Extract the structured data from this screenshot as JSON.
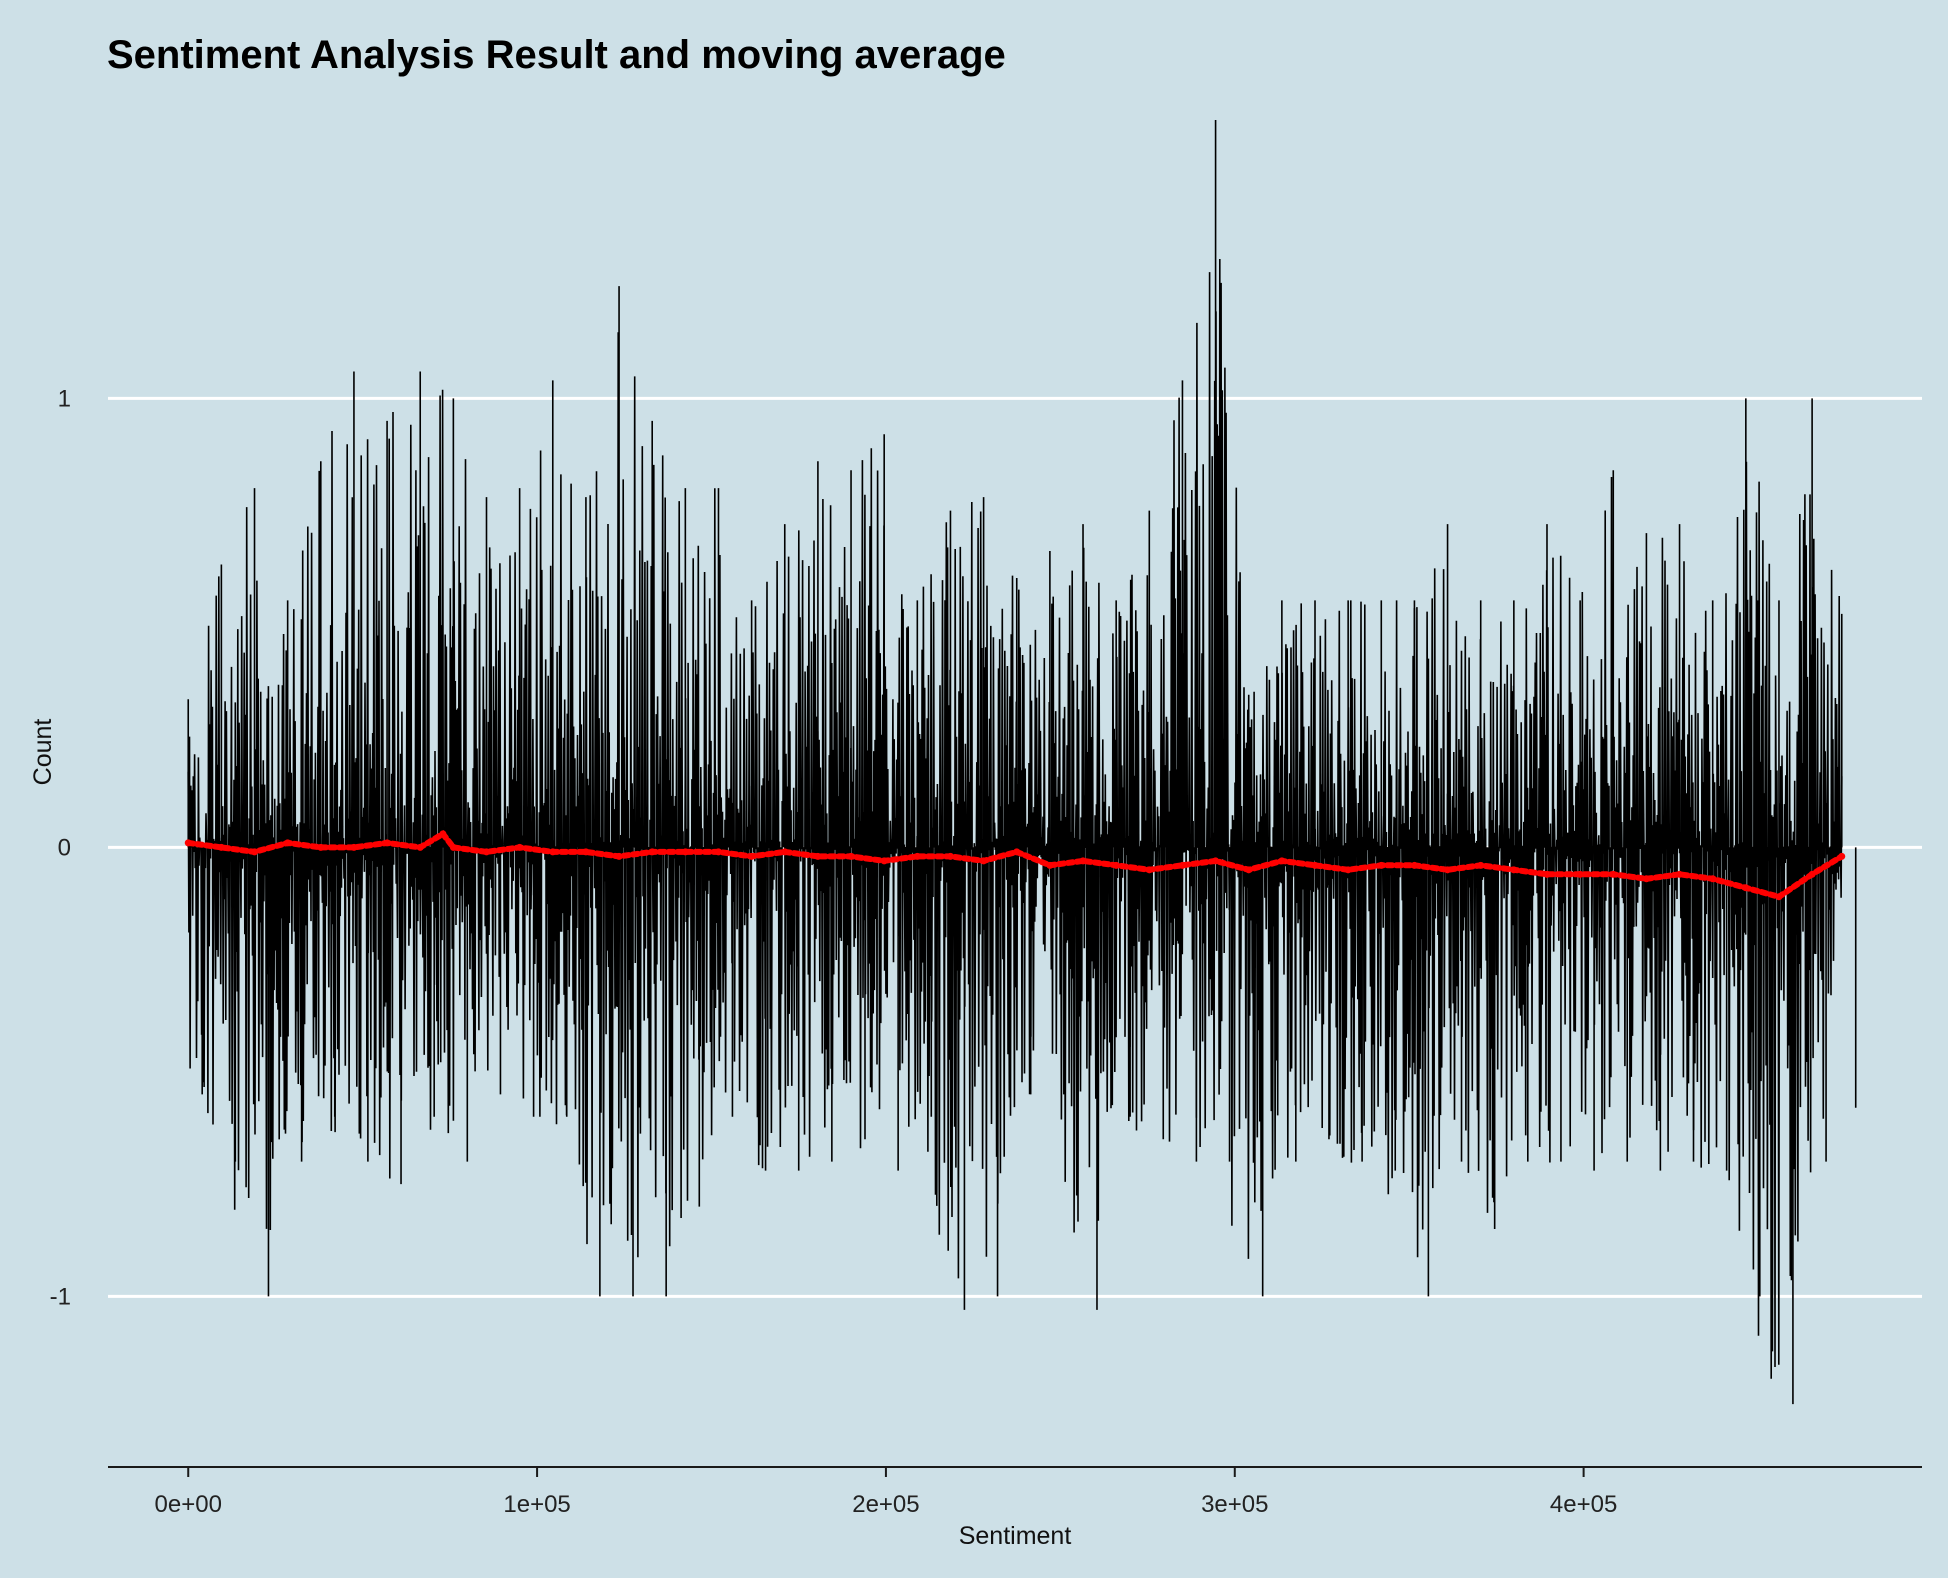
{
  "chart_data": {
    "type": "line",
    "title": "Sentiment Analysis Result and moving average",
    "xlabel": "Sentiment",
    "ylabel": "Count",
    "xlim": [
      -23000,
      497000
    ],
    "ylim": [
      -1.38,
      1.62
    ],
    "x_ticks": [
      {
        "value": 0,
        "label": "0e+00"
      },
      {
        "value": 100000,
        "label": "1e+05"
      },
      {
        "value": 200000,
        "label": "2e+05"
      },
      {
        "value": 300000,
        "label": "3e+05"
      },
      {
        "value": 400000,
        "label": "4e+05"
      }
    ],
    "y_ticks": [
      {
        "value": 1,
        "label": "1"
      },
      {
        "value": 0,
        "label": "0"
      },
      {
        "value": -1,
        "label": "-1"
      }
    ],
    "grid": "horizontal",
    "colors": {
      "background": "#cde0e7",
      "grid": "#ffffff",
      "raw": "#000000",
      "moving_average": "#ff0000"
    },
    "series": [
      {
        "style": "line",
        "color": "#000000",
        "x": [
          0,
          9500,
          19000,
          28500,
          38000,
          47500,
          57000,
          66500,
          76000,
          85500,
          95000,
          104500,
          114000,
          123500,
          133000,
          142500,
          152000,
          161500,
          171000,
          180500,
          190000,
          199500,
          209000,
          218500,
          228000,
          237500,
          247000,
          256500,
          266000,
          275500,
          285000,
          294500,
          304000,
          313500,
          323000,
          332500,
          342000,
          351500,
          361000,
          370500,
          380000,
          389500,
          399000,
          408500,
          418000,
          427500,
          437000,
          446500,
          456000,
          465500,
          474000
        ],
        "max": [
          0.33,
          0.63,
          0.8,
          0.55,
          0.86,
          1.06,
          0.95,
          1.06,
          1.0,
          0.78,
          0.8,
          1.04,
          0.78,
          1.25,
          0.95,
          0.8,
          0.8,
          0.55,
          0.72,
          0.86,
          0.84,
          0.92,
          0.55,
          0.75,
          0.78,
          0.6,
          0.66,
          0.72,
          0.55,
          0.75,
          1.04,
          1.62,
          0.34,
          0.55,
          0.55,
          0.55,
          0.55,
          0.55,
          0.72,
          0.55,
          0.55,
          0.72,
          0.55,
          0.84,
          0.7,
          0.72,
          0.55,
          1.0,
          0.55,
          1.0,
          0.52
        ],
        "min": [
          -0.55,
          -0.7,
          -1.0,
          -0.7,
          -0.6,
          -0.7,
          -0.75,
          -0.6,
          -0.7,
          -0.55,
          -0.6,
          -0.6,
          -1.0,
          -1.0,
          -1.0,
          -0.8,
          -0.6,
          -0.72,
          -0.72,
          -0.7,
          -0.65,
          -0.72,
          -0.6,
          -1.03,
          -1.0,
          -0.55,
          -0.55,
          -1.03,
          -0.6,
          -0.65,
          -0.7,
          -0.7,
          -1.0,
          -0.7,
          -0.65,
          -0.7,
          -0.72,
          -1.0,
          -0.7,
          -0.85,
          -0.7,
          -0.7,
          -0.72,
          -0.7,
          -0.72,
          -0.7,
          -0.72,
          -1.0,
          -1.24,
          -0.7,
          -0.58
        ]
      },
      {
        "style": "dotted",
        "color": "#ff0000",
        "x": [
          0,
          9500,
          19000,
          28500,
          38000,
          47500,
          57000,
          66500,
          73000,
          76000,
          85500,
          95000,
          104500,
          114000,
          123500,
          133000,
          142500,
          152000,
          161500,
          171000,
          180500,
          190000,
          199500,
          209000,
          218500,
          228000,
          237500,
          247000,
          256500,
          266000,
          275500,
          285000,
          294500,
          304000,
          313500,
          323000,
          332500,
          342000,
          351500,
          361000,
          370500,
          380000,
          389500,
          399000,
          408500,
          418000,
          427500,
          437000,
          446500,
          456000,
          465500,
          474000
        ],
        "values": [
          0.01,
          0.0,
          -0.01,
          0.01,
          0.0,
          0.0,
          0.01,
          0.0,
          0.03,
          0.0,
          -0.01,
          0.0,
          -0.01,
          -0.01,
          -0.02,
          -0.01,
          -0.01,
          -0.01,
          -0.02,
          -0.01,
          -0.02,
          -0.02,
          -0.03,
          -0.02,
          -0.02,
          -0.03,
          -0.01,
          -0.04,
          -0.03,
          -0.04,
          -0.05,
          -0.04,
          -0.03,
          -0.05,
          -0.03,
          -0.04,
          -0.05,
          -0.04,
          -0.04,
          -0.05,
          -0.04,
          -0.05,
          -0.06,
          -0.06,
          -0.06,
          -0.07,
          -0.06,
          -0.07,
          -0.09,
          -0.11,
          -0.06,
          -0.02
        ]
      }
    ]
  }
}
